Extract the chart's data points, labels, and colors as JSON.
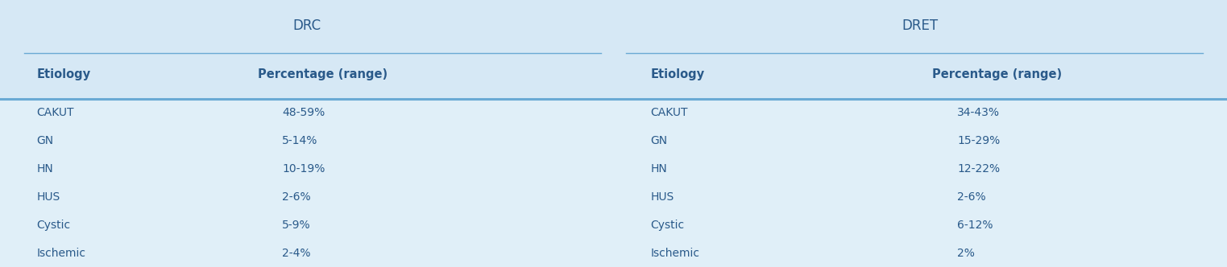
{
  "bg_color": "#d6e8f5",
  "body_bg_color": "#e0eff8",
  "header_line_color": "#6aaad4",
  "text_color": "#2a5a8a",
  "col1_header": "DRC",
  "col2_header": "DRET",
  "subheader_left": "Etiology",
  "subheader_right": "Percentage (range)",
  "drc_rows": [
    [
      "CAKUT",
      "48-59%"
    ],
    [
      "GN",
      "5-14%"
    ],
    [
      "HN",
      "10-19%"
    ],
    [
      "HUS",
      "2-6%"
    ],
    [
      "Cystic",
      "5-9%"
    ],
    [
      "Ischemic",
      "2-4%"
    ]
  ],
  "dret_rows": [
    [
      "CAKUT",
      "34-43%"
    ],
    [
      "GN",
      "15-29%"
    ],
    [
      "HN",
      "12-22%"
    ],
    [
      "HUS",
      "2-6%"
    ],
    [
      "Cystic",
      "6-12%"
    ],
    [
      "Ischemic",
      "2%"
    ]
  ],
  "figsize": [
    15.23,
    3.32
  ],
  "dpi": 100
}
